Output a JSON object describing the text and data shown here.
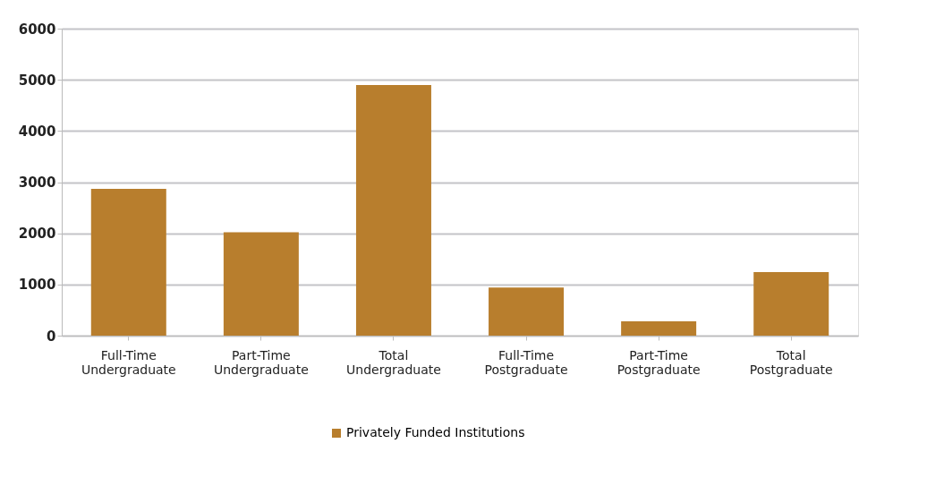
{
  "chart_data": {
    "type": "bar",
    "categories": [
      "Full-Time Undergraduate",
      "Part-Time Undergraduate",
      "Total Undergraduate",
      "Full-Time Postgraduate",
      "Part-Time Postgraduate",
      "Total Postgraduate"
    ],
    "series": [
      {
        "name": "Privately Funded Institutions",
        "color": "#b87e2d",
        "values": [
          2870,
          2020,
          4900,
          940,
          280,
          1240
        ]
      }
    ],
    "ylim": [
      0,
      6000
    ],
    "yticks": [
      0,
      1000,
      2000,
      3000,
      4000,
      5000,
      6000
    ],
    "grid": "y",
    "legend": "bottom"
  }
}
